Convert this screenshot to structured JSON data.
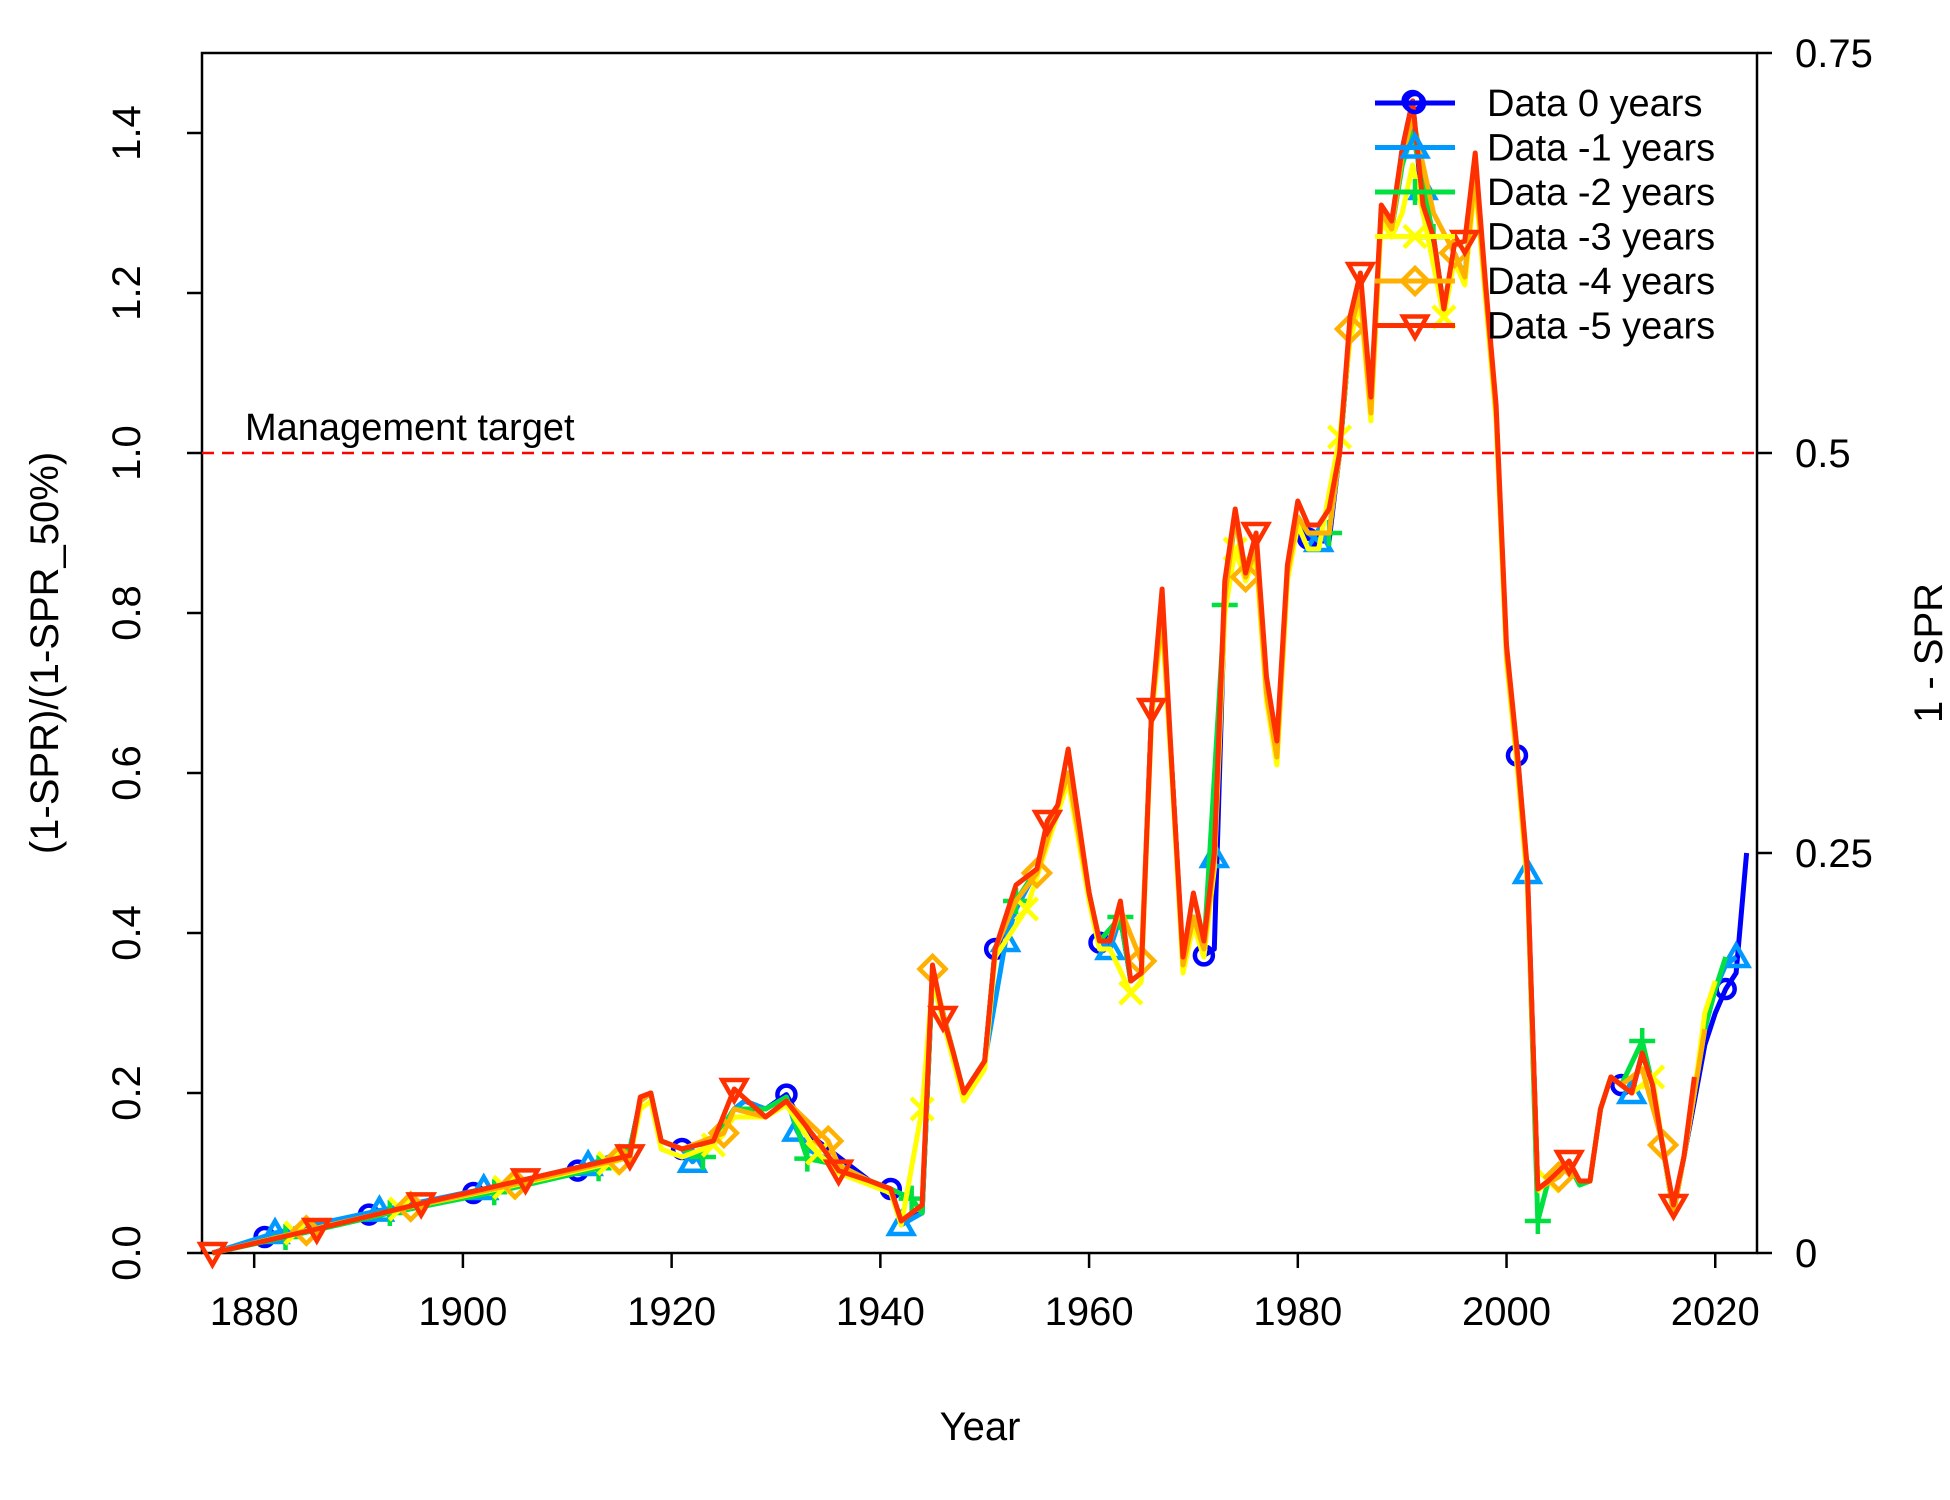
{
  "chart_data": {
    "type": "line",
    "xlabel": "Year",
    "ylabel": "(1-SPR)/(1-SPR_50%)",
    "ylabel_right": "1 - SPR",
    "xlim": [
      1875,
      2024
    ],
    "ylim": [
      0,
      1.5
    ],
    "x_ticks": [
      "1880",
      "1900",
      "1920",
      "1940",
      "1960",
      "1980",
      "2000",
      "2020"
    ],
    "y_ticks": [
      "0.0",
      "0.2",
      "0.4",
      "0.6",
      "0.8",
      "1.0",
      "1.2",
      "1.4"
    ],
    "y_right_ticks": [
      "0",
      "0.25",
      "0.5",
      "0.75"
    ],
    "reference_line": {
      "y": 1.0,
      "label": "Management target",
      "color": "#ff0000"
    },
    "legend_position": "top-right",
    "legend": [
      {
        "name": "Data 0 years",
        "color": "#0000ff",
        "marker": "circle"
      },
      {
        "name": "Data -1 years",
        "color": "#0099ff",
        "marker": "triangle"
      },
      {
        "name": "Data -2 years",
        "color": "#00e040",
        "marker": "plus"
      },
      {
        "name": "Data -3 years",
        "color": "#ffff00",
        "marker": "x"
      },
      {
        "name": "Data -4 years",
        "color": "#ffb000",
        "marker": "diamond"
      },
      {
        "name": "Data -5 years",
        "color": "#ff3000",
        "marker": "triangle-down"
      }
    ],
    "series": [
      {
        "name": "Data 0 years",
        "x": [
          1876,
          1881,
          1891,
          1901,
          1911,
          1916,
          1917,
          1918,
          1919,
          1921,
          1922,
          1924,
          1926,
          1927,
          1929,
          1931,
          1933,
          1936,
          1939,
          1941,
          1942,
          1944,
          1945,
          1946,
          1947,
          1948,
          1950,
          1951,
          1953,
          1955,
          1957,
          1958,
          1960,
          1961,
          1962,
          1963,
          1964,
          1965,
          1966,
          1967,
          1968,
          1969,
          1970,
          1971,
          1972,
          1973,
          1974,
          1975,
          1976,
          1977,
          1978,
          1979,
          1980,
          1981,
          1982,
          1983,
          1984,
          1985,
          1986,
          1987,
          1988,
          1989,
          1990,
          1991,
          1992,
          1993,
          1994,
          1995,
          1996,
          1997,
          1998,
          1999,
          2000,
          2001,
          2002,
          2003,
          2004,
          2005,
          2006,
          2007,
          2008,
          2009,
          2010,
          2011,
          2012,
          2013,
          2014,
          2015,
          2016,
          2017,
          2018,
          2019,
          2020,
          2021,
          2022,
          2023
        ],
        "values": [
          0.0,
          0.02,
          0.048,
          0.075,
          0.103,
          0.13,
          0.19,
          0.2,
          0.14,
          0.13,
          0.118,
          0.14,
          0.18,
          0.19,
          0.18,
          0.198,
          0.15,
          0.12,
          0.09,
          0.08,
          0.04,
          0.05,
          0.35,
          0.3,
          0.25,
          0.2,
          0.24,
          0.38,
          0.43,
          0.48,
          0.56,
          0.6,
          0.45,
          0.388,
          0.39,
          0.42,
          0.34,
          0.35,
          0.68,
          0.8,
          0.59,
          0.36,
          0.42,
          0.372,
          0.38,
          0.82,
          0.92,
          0.85,
          0.88,
          0.7,
          0.62,
          0.85,
          0.92,
          0.893,
          0.89,
          0.89,
          1.0,
          1.15,
          1.2,
          1.05,
          1.3,
          1.28,
          1.38,
          1.44,
          1.3,
          1.26,
          1.18,
          1.25,
          1.22,
          1.35,
          1.2,
          1.05,
          0.75,
          0.622,
          0.47,
          0.08,
          0.09,
          0.1,
          0.11,
          0.09,
          0.09,
          0.18,
          0.22,
          0.21,
          0.2,
          0.25,
          0.21,
          0.13,
          0.05,
          0.12,
          0.19,
          0.26,
          0.3,
          0.33,
          0.35,
          0.5
        ]
      },
      {
        "name": "Data -1 years",
        "x": [
          1876,
          1882,
          1892,
          1902,
          1912,
          1916,
          1917,
          1918,
          1919,
          1921,
          1922,
          1924,
          1926,
          1927,
          1929,
          1931,
          1932,
          1933,
          1936,
          1939,
          1941,
          1942,
          1944,
          1945,
          1946,
          1947,
          1948,
          1950,
          1952,
          1953,
          1955,
          1957,
          1958,
          1960,
          1961,
          1962,
          1963,
          1964,
          1965,
          1966,
          1967,
          1968,
          1969,
          1970,
          1971,
          1972,
          1973,
          1974,
          1975,
          1976,
          1977,
          1978,
          1979,
          1980,
          1981,
          1982,
          1983,
          1984,
          1985,
          1986,
          1987,
          1988,
          1989,
          1990,
          1991,
          1992,
          1993,
          1994,
          1995,
          1996,
          1997,
          1998,
          1999,
          2000,
          2001,
          2002,
          2003,
          2004,
          2005,
          2006,
          2007,
          2008,
          2009,
          2010,
          2011,
          2012,
          2013,
          2014,
          2015,
          2016,
          2017,
          2018,
          2019,
          2020,
          2021,
          2022
        ],
        "values": [
          0.0,
          0.025,
          0.053,
          0.08,
          0.11,
          0.13,
          0.19,
          0.2,
          0.14,
          0.13,
          0.114,
          0.14,
          0.18,
          0.19,
          0.18,
          0.195,
          0.153,
          0.13,
          0.11,
          0.09,
          0.08,
          0.035,
          0.05,
          0.35,
          0.3,
          0.25,
          0.2,
          0.24,
          0.39,
          0.43,
          0.48,
          0.56,
          0.6,
          0.45,
          0.39,
          0.38,
          0.42,
          0.34,
          0.35,
          0.68,
          0.8,
          0.59,
          0.36,
          0.42,
          0.38,
          0.495,
          0.82,
          0.92,
          0.85,
          0.88,
          0.7,
          0.62,
          0.85,
          0.92,
          0.9,
          0.89,
          0.9,
          1.0,
          1.15,
          1.2,
          1.05,
          1.3,
          1.28,
          1.36,
          1.42,
          1.33,
          1.27,
          1.18,
          1.25,
          1.22,
          1.35,
          1.2,
          1.05,
          0.75,
          0.63,
          0.475,
          0.08,
          0.09,
          0.1,
          0.11,
          0.09,
          0.09,
          0.18,
          0.22,
          0.21,
          0.2,
          0.25,
          0.21,
          0.13,
          0.05,
          0.12,
          0.2,
          0.28,
          0.33,
          0.36,
          0.37
        ]
      },
      {
        "name": "Data -2 years",
        "x": [
          1876,
          1883,
          1893,
          1903,
          1913,
          1916,
          1917,
          1918,
          1919,
          1921,
          1923,
          1926,
          1929,
          1931,
          1933,
          1936,
          1939,
          1941,
          1943,
          1944,
          1945,
          1946,
          1947,
          1948,
          1950,
          1951,
          1953,
          1955,
          1957,
          1958,
          1960,
          1961,
          1963,
          1964,
          1965,
          1966,
          1967,
          1968,
          1969,
          1970,
          1971,
          1973,
          1974,
          1975,
          1976,
          1977,
          1978,
          1979,
          1980,
          1981,
          1983,
          1984,
          1985,
          1986,
          1987,
          1988,
          1989,
          1990,
          1991,
          1993,
          1994,
          1995,
          1996,
          1997,
          1998,
          1999,
          2000,
          2001,
          2002,
          2003,
          2004,
          2005,
          2006,
          2007,
          2008,
          2009,
          2010,
          2011,
          2013,
          2014,
          2015,
          2016,
          2017,
          2018,
          2019,
          2020,
          2021
        ],
        "values": [
          0.0,
          0.02,
          0.05,
          0.076,
          0.106,
          0.13,
          0.19,
          0.2,
          0.14,
          0.13,
          0.12,
          0.18,
          0.18,
          0.195,
          0.118,
          0.11,
          0.09,
          0.08,
          0.068,
          0.05,
          0.35,
          0.3,
          0.25,
          0.2,
          0.24,
          0.38,
          0.44,
          0.48,
          0.56,
          0.6,
          0.45,
          0.39,
          0.42,
          0.34,
          0.35,
          0.68,
          0.8,
          0.59,
          0.36,
          0.42,
          0.38,
          0.81,
          0.92,
          0.85,
          0.88,
          0.7,
          0.62,
          0.85,
          0.92,
          0.9,
          0.9,
          1.0,
          1.15,
          1.2,
          1.05,
          1.3,
          1.28,
          1.36,
          1.4,
          1.27,
          1.18,
          1.25,
          1.22,
          1.35,
          1.2,
          1.05,
          0.75,
          0.62,
          0.47,
          0.04,
          0.09,
          0.1,
          0.11,
          0.085,
          0.09,
          0.18,
          0.22,
          0.21,
          0.265,
          0.21,
          0.13,
          0.05,
          0.12,
          0.2,
          0.28,
          0.33,
          0.37
        ]
      },
      {
        "name": "Data -3 years",
        "x": [
          1876,
          1884,
          1894,
          1904,
          1914,
          1916,
          1917,
          1918,
          1919,
          1921,
          1924,
          1926,
          1929,
          1931,
          1934,
          1936,
          1939,
          1941,
          1942,
          1944,
          1945,
          1946,
          1947,
          1948,
          1950,
          1951,
          1954,
          1955,
          1957,
          1958,
          1960,
          1961,
          1962,
          1964,
          1965,
          1966,
          1967,
          1968,
          1969,
          1970,
          1971,
          1972,
          1973,
          1974,
          1975,
          1976,
          1977,
          1978,
          1979,
          1980,
          1981,
          1982,
          1984,
          1985,
          1986,
          1987,
          1988,
          1989,
          1990,
          1991,
          1992,
          1994,
          1995,
          1996,
          1997,
          1998,
          1999,
          2000,
          2001,
          2002,
          2003,
          2004,
          2005,
          2006,
          2007,
          2008,
          2009,
          2010,
          2011,
          2012,
          2014,
          2015,
          2016,
          2017,
          2018,
          2019,
          2020
        ],
        "values": [
          0.0,
          0.025,
          0.055,
          0.082,
          0.112,
          0.12,
          0.18,
          0.19,
          0.13,
          0.12,
          0.135,
          0.17,
          0.17,
          0.185,
          0.125,
          0.1,
          0.085,
          0.075,
          0.035,
          0.18,
          0.34,
          0.29,
          0.24,
          0.19,
          0.23,
          0.37,
          0.43,
          0.47,
          0.55,
          0.59,
          0.44,
          0.38,
          0.38,
          0.325,
          0.34,
          0.67,
          0.79,
          0.58,
          0.35,
          0.41,
          0.37,
          0.48,
          0.8,
          0.88,
          0.84,
          0.87,
          0.69,
          0.61,
          0.84,
          0.91,
          0.88,
          0.88,
          1.02,
          1.14,
          1.19,
          1.04,
          1.29,
          1.27,
          1.3,
          1.36,
          1.3,
          1.17,
          1.24,
          1.21,
          1.34,
          1.19,
          1.04,
          0.74,
          0.61,
          0.46,
          0.08,
          0.09,
          0.1,
          0.11,
          0.09,
          0.09,
          0.18,
          0.22,
          0.21,
          0.2,
          0.22,
          0.13,
          0.05,
          0.12,
          0.2,
          0.3,
          0.34
        ]
      },
      {
        "name": "Data -4 years",
        "x": [
          1876,
          1885,
          1895,
          1905,
          1915,
          1916,
          1917,
          1918,
          1919,
          1921,
          1925,
          1926,
          1929,
          1931,
          1935,
          1936,
          1939,
          1941,
          1942,
          1944,
          1945,
          1946,
          1947,
          1948,
          1950,
          1951,
          1953,
          1955,
          1957,
          1958,
          1960,
          1961,
          1962,
          1963,
          1965,
          1966,
          1967,
          1968,
          1969,
          1970,
          1971,
          1972,
          1973,
          1974,
          1975,
          1976,
          1977,
          1978,
          1979,
          1980,
          1981,
          1983,
          1984,
          1985,
          1986,
          1987,
          1988,
          1989,
          1990,
          1991,
          1993,
          1995,
          1996,
          1997,
          1998,
          1999,
          2000,
          2001,
          2002,
          2003,
          2005,
          2006,
          2007,
          2008,
          2009,
          2010,
          2011,
          2013,
          2015,
          2016,
          2017,
          2018,
          2019
        ],
        "values": [
          0.0,
          0.028,
          0.058,
          0.086,
          0.117,
          0.12,
          0.19,
          0.2,
          0.14,
          0.13,
          0.15,
          0.18,
          0.17,
          0.19,
          0.14,
          0.11,
          0.09,
          0.08,
          0.04,
          0.06,
          0.355,
          0.3,
          0.25,
          0.2,
          0.24,
          0.38,
          0.44,
          0.475,
          0.56,
          0.6,
          0.45,
          0.39,
          0.39,
          0.43,
          0.365,
          0.68,
          0.8,
          0.59,
          0.36,
          0.42,
          0.38,
          0.49,
          0.82,
          0.92,
          0.845,
          0.88,
          0.7,
          0.62,
          0.85,
          0.92,
          0.9,
          0.9,
          1.0,
          1.155,
          1.2,
          1.05,
          1.3,
          1.28,
          1.37,
          1.42,
          1.3,
          1.25,
          1.22,
          1.35,
          1.2,
          1.05,
          0.75,
          0.62,
          0.47,
          0.08,
          0.095,
          0.11,
          0.09,
          0.09,
          0.18,
          0.22,
          0.21,
          0.23,
          0.135,
          0.05,
          0.12,
          0.2,
          0.28
        ]
      },
      {
        "name": "Data -5 years",
        "x": [
          1876,
          1886,
          1896,
          1906,
          1916,
          1917,
          1918,
          1919,
          1921,
          1924,
          1926,
          1929,
          1931,
          1934,
          1936,
          1939,
          1941,
          1942,
          1944,
          1945,
          1946,
          1947,
          1948,
          1950,
          1951,
          1953,
          1955,
          1956,
          1957,
          1958,
          1960,
          1961,
          1962,
          1963,
          1964,
          1965,
          1966,
          1967,
          1968,
          1969,
          1970,
          1971,
          1972,
          1973,
          1974,
          1975,
          1976,
          1977,
          1978,
          1979,
          1980,
          1981,
          1982,
          1983,
          1984,
          1985,
          1986,
          1987,
          1988,
          1989,
          1990,
          1991,
          1992,
          1993,
          1994,
          1995,
          1996,
          1997,
          1998,
          1999,
          2000,
          2001,
          2002,
          2003,
          2004,
          2006,
          2007,
          2008,
          2009,
          2010,
          2011,
          2012,
          2013,
          2014,
          2015,
          2016,
          2017,
          2018
        ],
        "values": [
          0.0,
          0.03,
          0.062,
          0.092,
          0.122,
          0.195,
          0.2,
          0.14,
          0.13,
          0.14,
          0.205,
          0.17,
          0.19,
          0.14,
          0.103,
          0.09,
          0.08,
          0.04,
          0.06,
          0.36,
          0.295,
          0.25,
          0.2,
          0.24,
          0.38,
          0.46,
          0.48,
          0.54,
          0.56,
          0.63,
          0.45,
          0.39,
          0.39,
          0.44,
          0.34,
          0.35,
          0.68,
          0.83,
          0.59,
          0.37,
          0.45,
          0.39,
          0.5,
          0.84,
          0.93,
          0.85,
          0.9,
          0.72,
          0.64,
          0.86,
          0.94,
          0.91,
          0.91,
          0.93,
          1.0,
          1.17,
          1.225,
          1.07,
          1.31,
          1.29,
          1.38,
          1.44,
          1.31,
          1.27,
          1.18,
          1.26,
          1.265,
          1.375,
          1.21,
          1.06,
          0.76,
          0.63,
          0.48,
          0.08,
          0.09,
          0.115,
          0.09,
          0.09,
          0.18,
          0.22,
          0.21,
          0.2,
          0.25,
          0.21,
          0.13,
          0.06,
          0.12,
          0.22
        ]
      }
    ]
  }
}
